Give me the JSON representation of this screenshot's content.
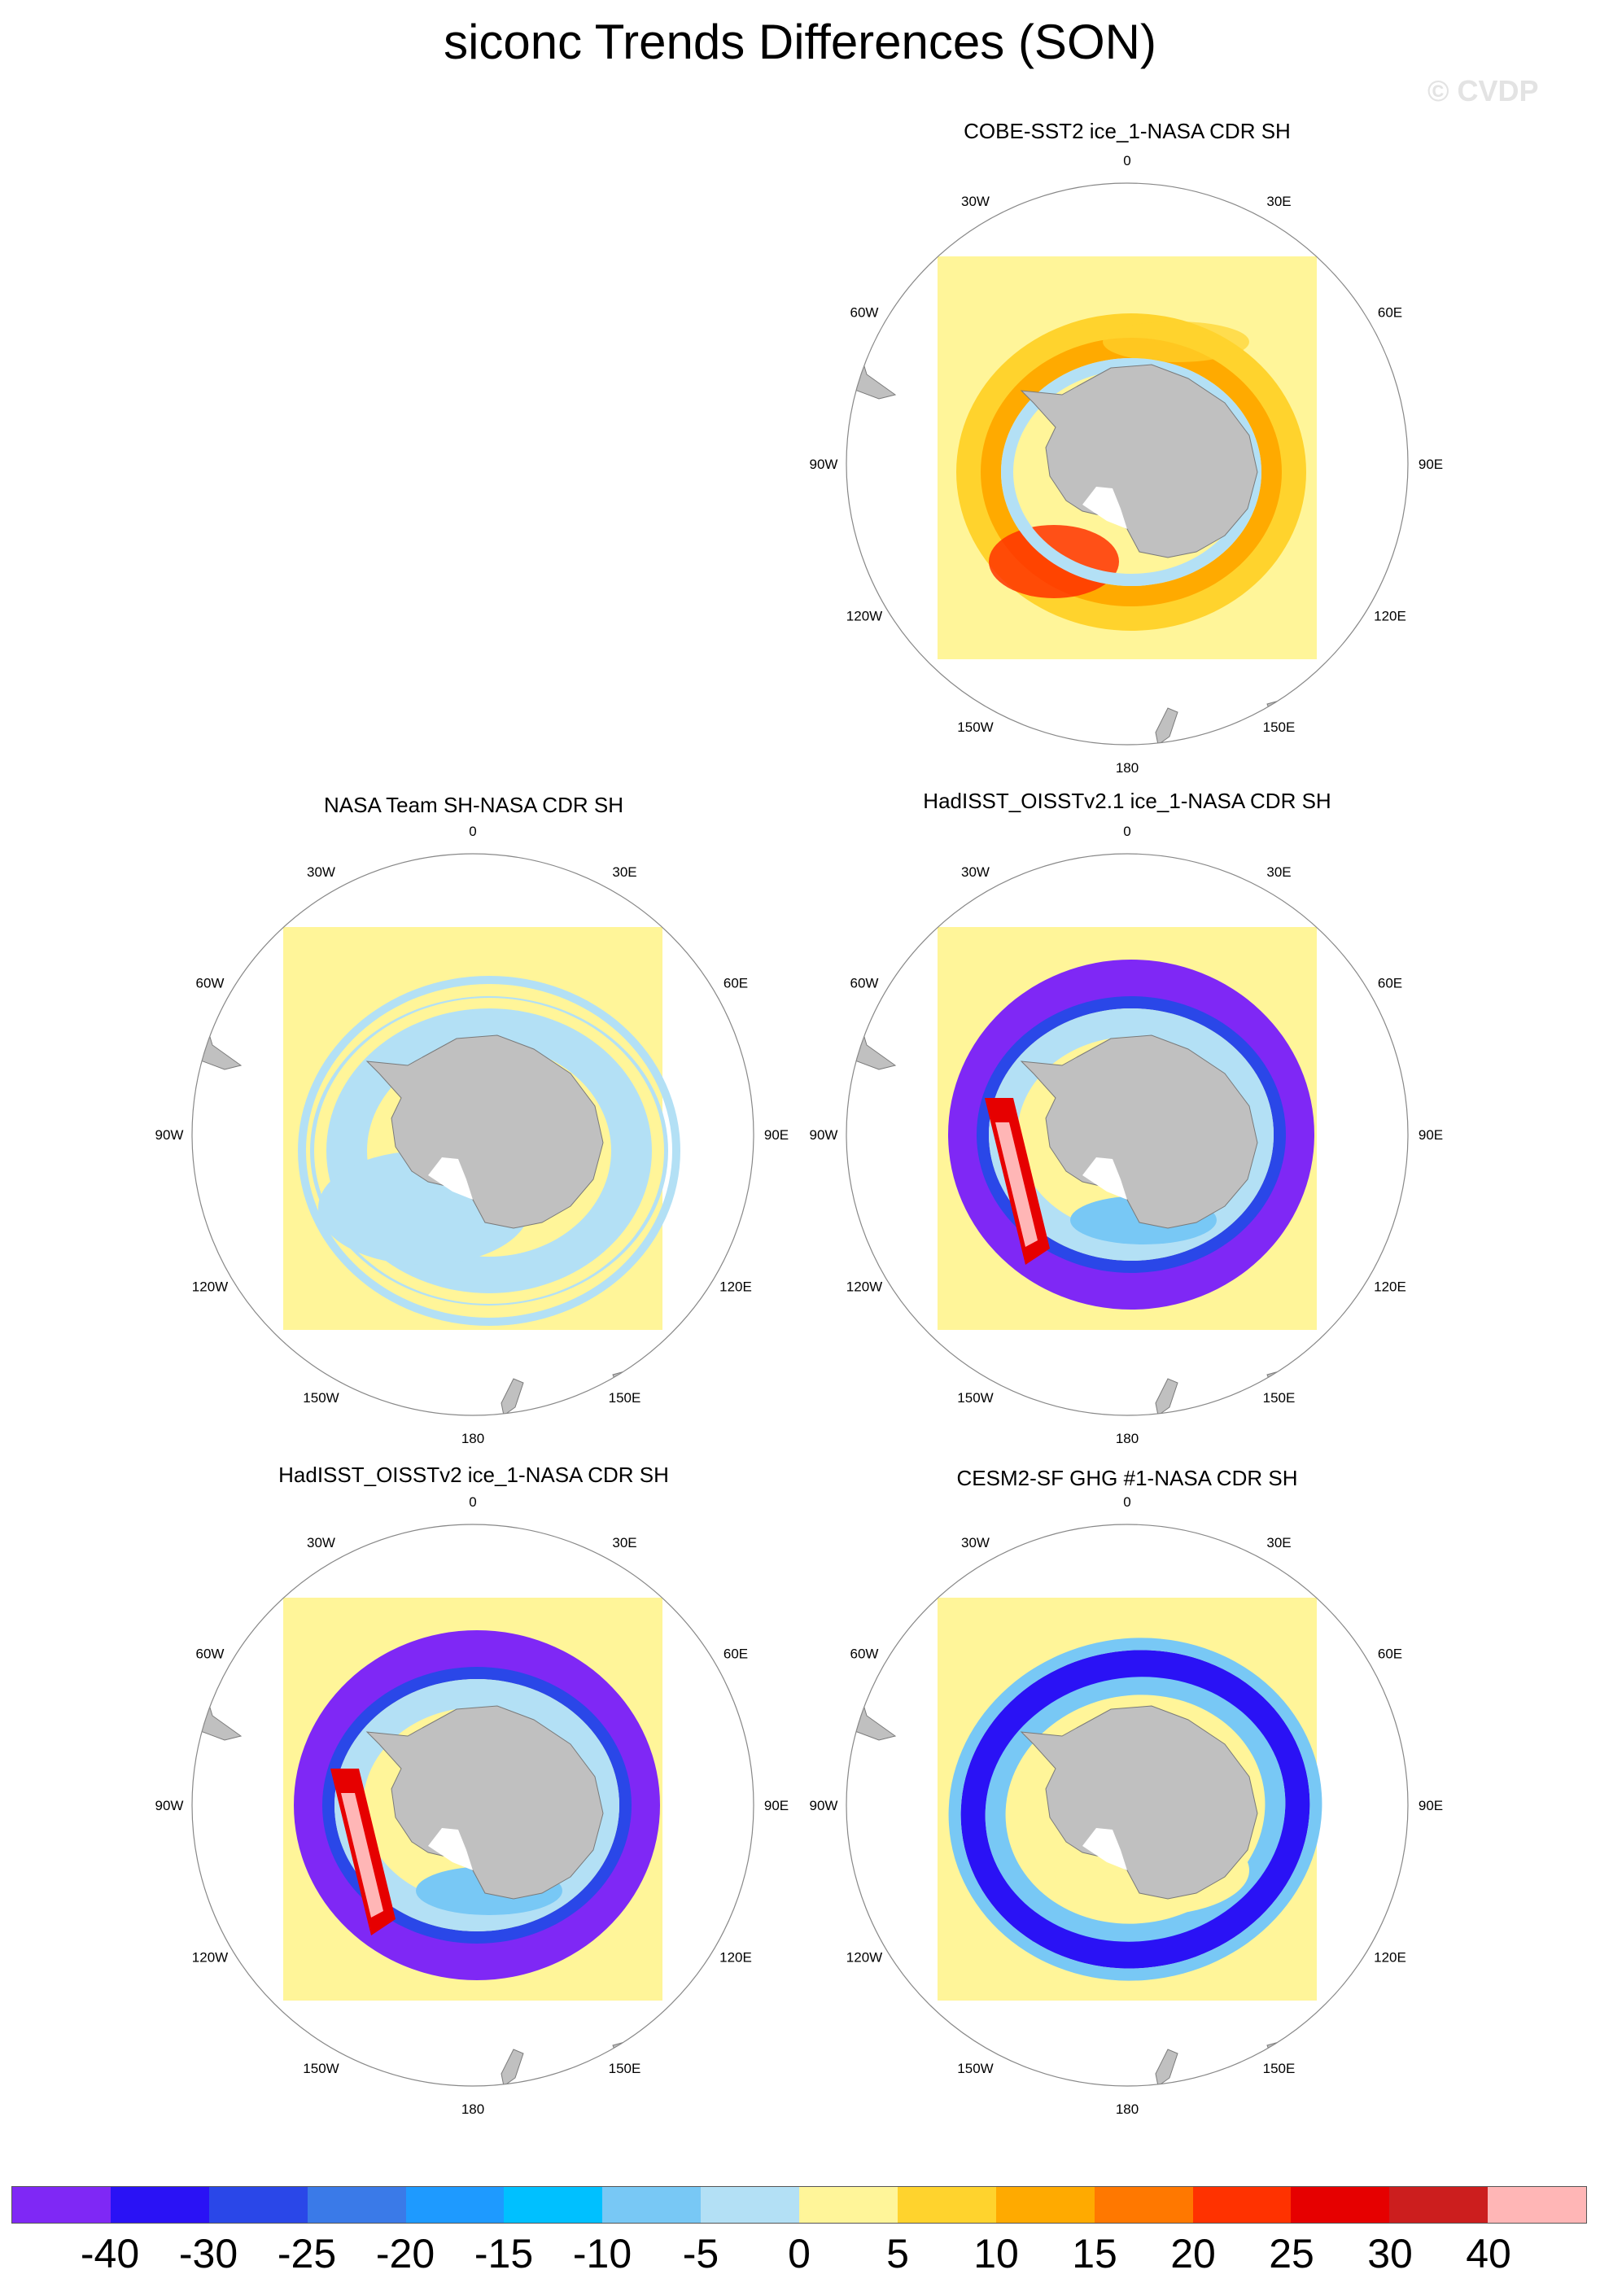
{
  "title": "siconc Trends Differences (SON)",
  "watermark": "© CVDP",
  "degree_labels": [
    "0",
    "30E",
    "60E",
    "90E",
    "120E",
    "150E",
    "180",
    "150W",
    "120W",
    "90W",
    "60W",
    "30W"
  ],
  "panels": [
    {
      "name": "COBE-SST2 ice_1-NASA CDR SH",
      "pattern": "orange-ring"
    },
    {
      "name": "NASA Team SH-NASA CDR SH",
      "pattern": "light-blue-speckle"
    },
    {
      "name": "HadISST_OISSTv2.1 ice_1-NASA CDR SH",
      "pattern": "purple-ring-red-west"
    },
    {
      "name": "HadISST_OISSTv2 ice_1-NASA CDR SH",
      "pattern": "purple-ring-red-west"
    },
    {
      "name": "CESM2-SF GHG #1-NASA CDR SH",
      "pattern": "blue-ring"
    }
  ],
  "colors": {
    "land": "#c0c0c0",
    "background_field": "#fff599",
    "ring_outline": "#888888"
  },
  "colorbar": {
    "colors": [
      "#7f28f5",
      "#2a12f5",
      "#2a47e8",
      "#3a7ae8",
      "#1e9aff",
      "#00c0ff",
      "#78c8f5",
      "#b3e0f5",
      "#fff599",
      "#ffd32d",
      "#ffaa00",
      "#ff7800",
      "#ff3200",
      "#e60000",
      "#cc1e1e",
      "#ffb6b6"
    ],
    "labels": [
      "-40",
      "-30",
      "-25",
      "-20",
      "-15",
      "-10",
      "-5",
      "0",
      "5",
      "10",
      "15",
      "20",
      "25",
      "30",
      "40"
    ]
  }
}
